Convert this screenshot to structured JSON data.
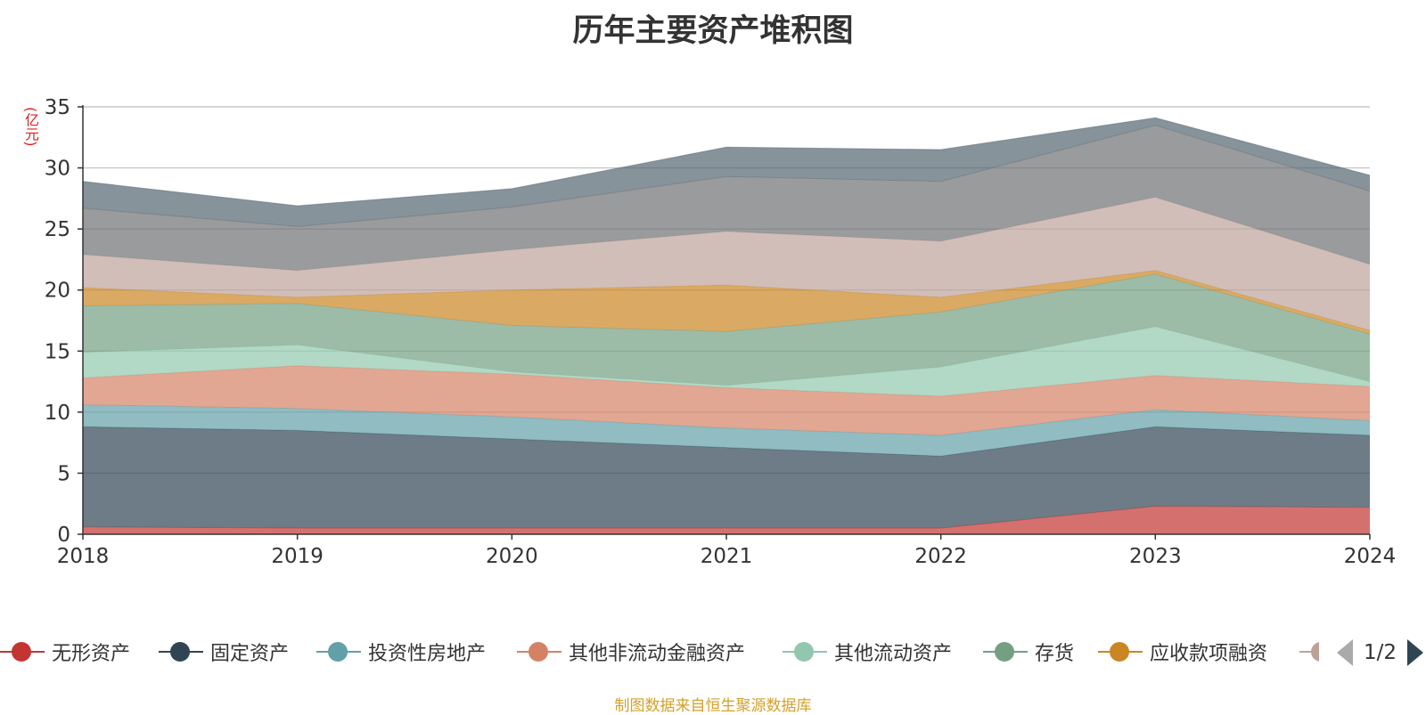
{
  "title": "历年主要资产堆积图",
  "unit_label": "(亿元)",
  "source": "制图数据来自恒生聚源数据库",
  "pager": {
    "text": "1/2"
  },
  "chart_data": {
    "type": "area",
    "stacked": true,
    "title": "历年主要资产堆积图",
    "ylabel": "(亿元)",
    "ylim": [
      0,
      35
    ],
    "yticks": [
      0,
      5,
      10,
      15,
      20,
      25,
      30,
      35
    ],
    "grid": true,
    "legend_position": "bottom",
    "categories": [
      "2018",
      "2019",
      "2020",
      "2021",
      "2022",
      "2023",
      "2024"
    ],
    "series": [
      {
        "name": "无形资产",
        "color": "#c23531",
        "values": [
          0.6,
          0.5,
          0.5,
          0.5,
          0.5,
          2.3,
          2.2
        ]
      },
      {
        "name": "固定资产",
        "color": "#2f4554",
        "values": [
          8.2,
          8.0,
          7.3,
          6.6,
          5.9,
          6.5,
          5.9
        ]
      },
      {
        "name": "投资性房地产",
        "color": "#61a0a8",
        "values": [
          1.8,
          1.8,
          1.8,
          1.6,
          1.7,
          1.4,
          1.2
        ]
      },
      {
        "name": "其他非流动金融资产",
        "color": "#d48265",
        "values": [
          2.2,
          3.5,
          3.5,
          3.3,
          3.2,
          2.8,
          2.8
        ]
      },
      {
        "name": "其他流动资产",
        "color": "#91c7ae",
        "values": [
          2.1,
          1.7,
          0.2,
          0.2,
          2.4,
          4.0,
          0.4
        ]
      },
      {
        "name": "存货",
        "color": "#749f83",
        "values": [
          3.8,
          3.4,
          3.8,
          4.4,
          4.5,
          4.3,
          3.9
        ]
      },
      {
        "name": "应收款项融资",
        "color": "#ca8622",
        "values": [
          1.5,
          0.5,
          2.9,
          3.8,
          1.2,
          0.3,
          0.3
        ]
      },
      {
        "name": "",
        "color": "#bda29a",
        "values": [
          2.7,
          2.2,
          3.3,
          4.4,
          4.6,
          6.0,
          5.4
        ]
      },
      {
        "name": "",
        "color": "#6e7074",
        "values": [
          3.8,
          3.6,
          3.5,
          4.5,
          4.9,
          5.9,
          6.0
        ]
      },
      {
        "name": "",
        "color": "#546570",
        "values": [
          2.2,
          1.7,
          1.5,
          2.4,
          2.6,
          0.6,
          1.3
        ]
      }
    ]
  }
}
